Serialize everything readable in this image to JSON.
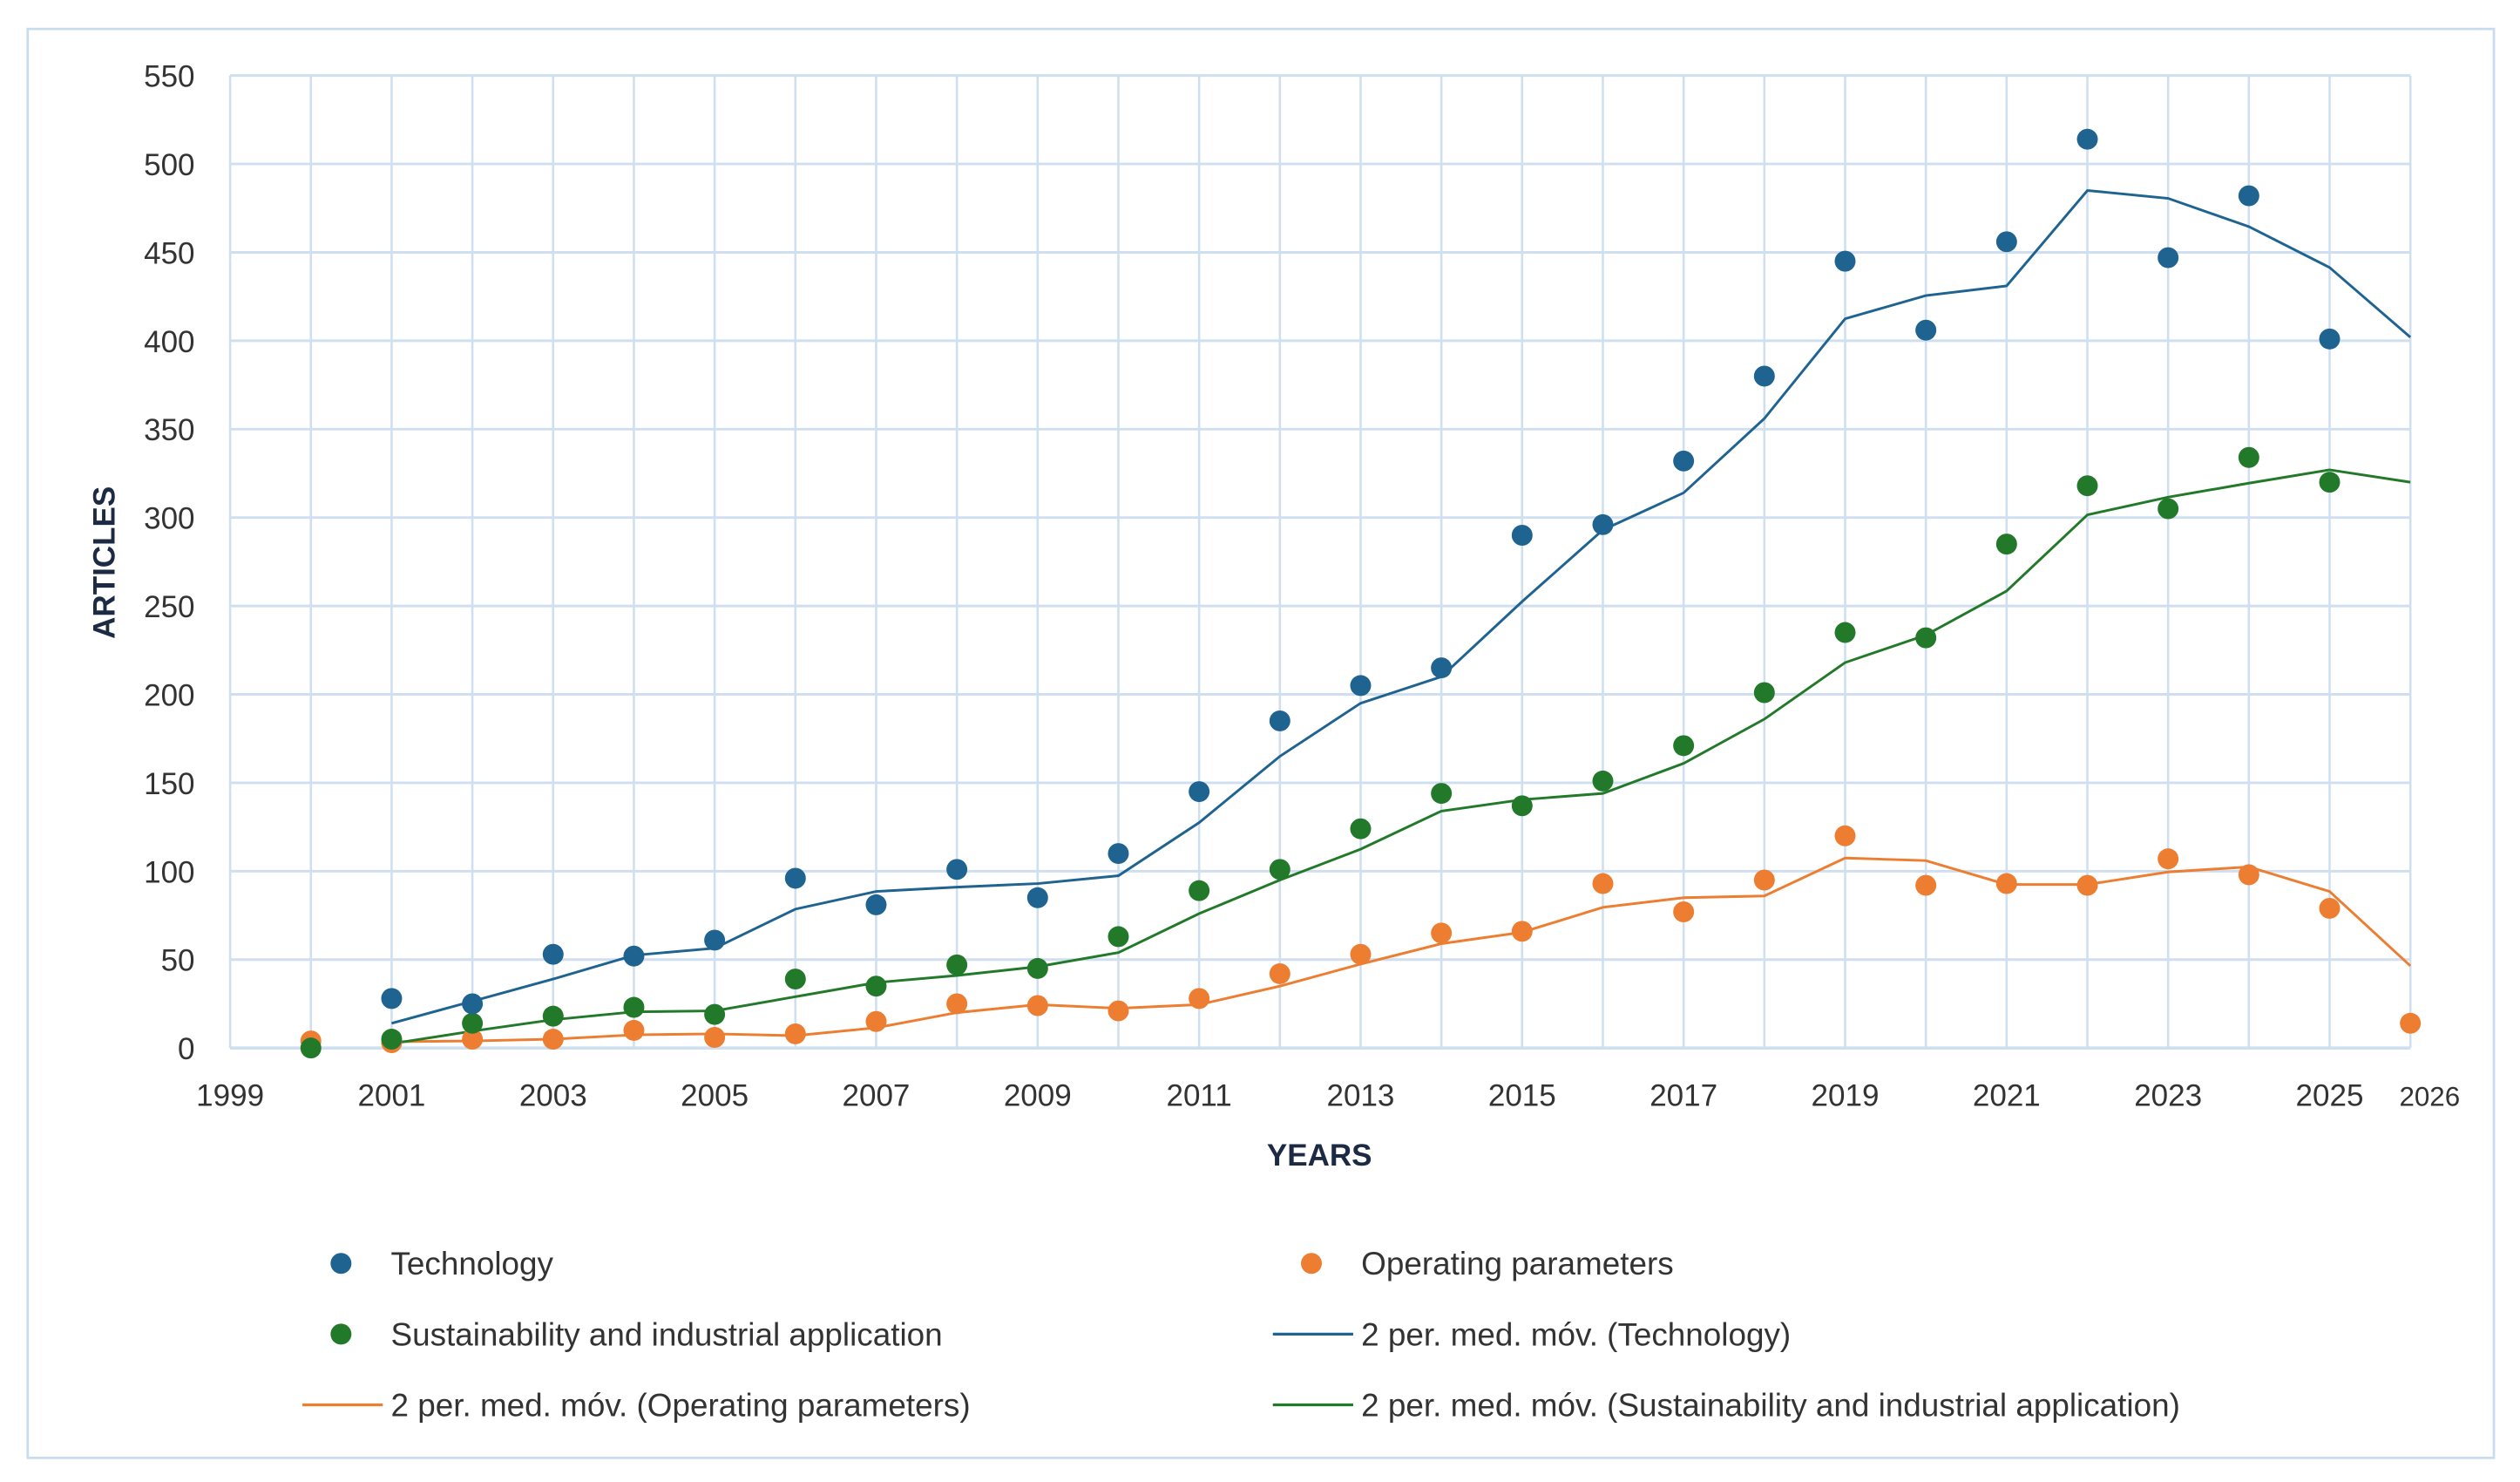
{
  "chart_data": {
    "type": "scatter",
    "xlabel": "YEARS",
    "ylabel": "ARTICLES",
    "xlim": [
      1999,
      2026
    ],
    "ylim": [
      0,
      550
    ],
    "yticks": [
      0,
      50,
      100,
      150,
      200,
      250,
      300,
      350,
      400,
      450,
      500,
      550
    ],
    "xticks": [
      1999,
      2001,
      2003,
      2005,
      2007,
      2009,
      2011,
      2013,
      2015,
      2017,
      2019,
      2021,
      2023,
      2025,
      2026
    ],
    "grid": true,
    "legend_position": "bottom",
    "colors": {
      "technology": "#1f6391",
      "operating": "#ed7d31",
      "sustainability": "#23792a"
    },
    "series": [
      {
        "name": "Technology",
        "kind": "points",
        "color": "#1f6391",
        "x": [
          2001,
          2002,
          2003,
          2004,
          2005,
          2006,
          2007,
          2008,
          2009,
          2010,
          2011,
          2012,
          2013,
          2014,
          2015,
          2016,
          2017,
          2018,
          2019,
          2020,
          2021,
          2022,
          2023,
          2024,
          2025
        ],
        "y": [
          28,
          25,
          53,
          52,
          61,
          96,
          81,
          101,
          85,
          110,
          145,
          185,
          205,
          215,
          290,
          296,
          332,
          380,
          445,
          406,
          456,
          514,
          447,
          482,
          401
        ]
      },
      {
        "name": "Operating parameters",
        "kind": "points",
        "color": "#ed7d31",
        "x": [
          2000,
          2001,
          2002,
          2003,
          2004,
          2005,
          2006,
          2007,
          2008,
          2009,
          2010,
          2011,
          2012,
          2013,
          2014,
          2015,
          2016,
          2017,
          2018,
          2019,
          2020,
          2021,
          2022,
          2023,
          2024,
          2025,
          2026
        ],
        "y": [
          4,
          3,
          5,
          5,
          10,
          6,
          8,
          15,
          25,
          24,
          21,
          28,
          42,
          53,
          65,
          66,
          93,
          77,
          95,
          120,
          92,
          93,
          92,
          107,
          98,
          79,
          14
        ]
      },
      {
        "name": "Sustainability and industrial application",
        "kind": "points",
        "color": "#23792a",
        "x": [
          2000,
          2001,
          2002,
          2003,
          2004,
          2005,
          2006,
          2007,
          2008,
          2009,
          2010,
          2011,
          2012,
          2013,
          2014,
          2015,
          2016,
          2017,
          2018,
          2019,
          2020,
          2021,
          2022,
          2023,
          2024,
          2025
        ],
        "y": [
          0,
          5,
          14,
          18,
          23,
          19,
          39,
          35,
          47,
          45,
          63,
          89,
          101,
          124,
          144,
          137,
          151,
          171,
          201,
          235,
          232,
          285,
          318,
          305,
          334,
          320
        ]
      },
      {
        "name": "2 per. med. móv. (Technology)",
        "kind": "line",
        "color": "#1f6391",
        "x": [
          2001,
          2002,
          2003,
          2004,
          2005,
          2006,
          2007,
          2008,
          2009,
          2010,
          2011,
          2012,
          2013,
          2014,
          2015,
          2016,
          2017,
          2018,
          2019,
          2020,
          2021,
          2022,
          2023,
          2024,
          2025,
          2026
        ],
        "y": [
          14,
          26.5,
          39,
          52.5,
          56.5,
          78.5,
          88.5,
          91,
          93,
          97.5,
          127.5,
          165,
          195,
          210,
          252.5,
          293,
          314,
          356,
          412.5,
          425.5,
          431,
          485,
          480.5,
          464.5,
          441.5,
          402
        ]
      },
      {
        "name": "2 per. med. móv. (Operating parameters)",
        "kind": "line",
        "color": "#ed7d31",
        "x": [
          2001,
          2002,
          2003,
          2004,
          2005,
          2006,
          2007,
          2008,
          2009,
          2010,
          2011,
          2012,
          2013,
          2014,
          2015,
          2016,
          2017,
          2018,
          2019,
          2020,
          2021,
          2022,
          2023,
          2024,
          2025,
          2026
        ],
        "y": [
          3.5,
          4,
          5,
          7.5,
          8,
          7,
          11.5,
          20,
          24.5,
          22.5,
          24.5,
          35,
          47.5,
          59,
          65.5,
          79.5,
          85,
          86,
          107.5,
          106,
          92.5,
          92.5,
          99.5,
          102.5,
          88.5,
          46.5
        ]
      },
      {
        "name": "2 per. med. móv. (Sustainability and industrial application)",
        "kind": "line",
        "color": "#23792a",
        "x": [
          2001,
          2002,
          2003,
          2004,
          2005,
          2006,
          2007,
          2008,
          2009,
          2010,
          2011,
          2012,
          2013,
          2014,
          2015,
          2016,
          2017,
          2018,
          2019,
          2020,
          2021,
          2022,
          2023,
          2024,
          2025,
          2026
        ],
        "y": [
          2.5,
          9.5,
          16,
          20.5,
          21,
          29,
          37,
          41,
          46,
          54,
          76,
          95,
          112.5,
          134,
          140.5,
          144,
          161,
          186,
          218,
          233.5,
          258.5,
          301.5,
          311.5,
          319.5,
          327,
          320
        ]
      }
    ],
    "legend": [
      {
        "label": "Technology",
        "series": 0
      },
      {
        "label": "Operating parameters",
        "series": 1
      },
      {
        "label": "Sustainability and industrial application",
        "series": 2
      },
      {
        "label": "2 per. med. móv. (Technology)",
        "series": 3
      },
      {
        "label": "2 per. med. móv. (Operating parameters)",
        "series": 4
      },
      {
        "label": "2 per. med. móv. (Sustainability and industrial application)",
        "series": 5
      }
    ]
  }
}
